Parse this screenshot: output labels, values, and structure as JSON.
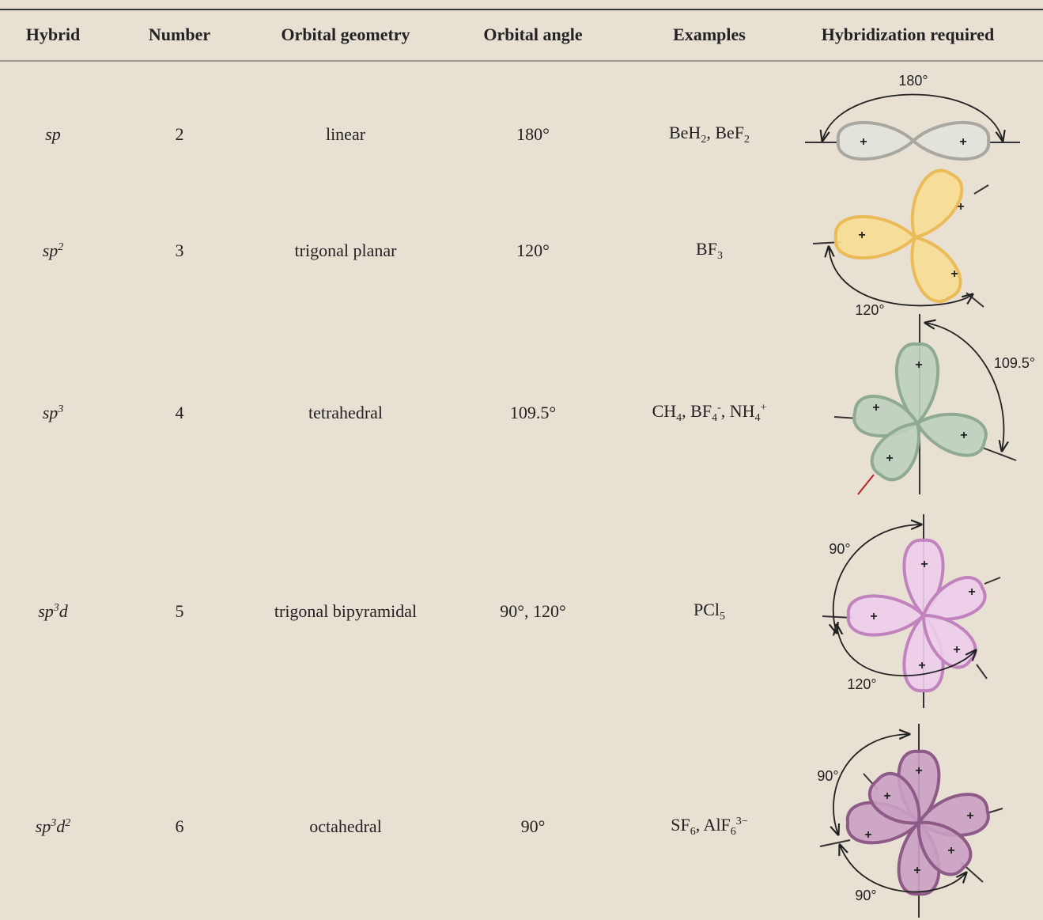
{
  "table": {
    "header": [
      "Hybrid",
      "Number",
      "Orbital geometry",
      "Orbital angle",
      "Examples",
      "Hybridization required"
    ],
    "rows": [
      [
        [
          {
            "t": "sp"
          }
        ],
        "2",
        "linear",
        "180°",
        [
          {
            "t": "BeH"
          },
          {
            "t": "2",
            "style": "sub"
          },
          {
            "t": ", BeF"
          },
          {
            "t": "2",
            "style": "sub"
          }
        ]
      ],
      [
        [
          {
            "t": "sp"
          },
          {
            "t": "2",
            "style": "sup"
          }
        ],
        "3",
        "trigonal planar",
        "120°",
        [
          {
            "t": "BF"
          },
          {
            "t": "3",
            "style": "sub"
          }
        ]
      ],
      [
        [
          {
            "t": "sp"
          },
          {
            "t": "3",
            "style": "sup"
          }
        ],
        "4",
        "tetrahedral",
        "109.5°",
        [
          {
            "t": "CH"
          },
          {
            "t": "4",
            "style": "sub"
          },
          {
            "t": ", BF"
          },
          {
            "t": "4",
            "style": "sub"
          },
          {
            "t": "-",
            "style": "sup"
          },
          {
            "t": ", NH"
          },
          {
            "t": "4",
            "style": "sub"
          },
          {
            "t": "+",
            "style": "sup"
          }
        ]
      ],
      [
        [
          {
            "t": "sp"
          },
          {
            "t": "3",
            "style": "sup"
          },
          {
            "t": "d"
          }
        ],
        "5",
        "trigonal bipyramidal",
        "90°, 120°",
        [
          {
            "t": "PCl"
          },
          {
            "t": "5",
            "style": "sub"
          }
        ]
      ],
      [
        [
          {
            "t": "sp"
          },
          {
            "t": "3",
            "style": "sup"
          },
          {
            "t": "d"
          },
          {
            "t": "2",
            "style": "sup"
          }
        ],
        "6",
        "octahedral",
        "90°",
        [
          {
            "t": "SF"
          },
          {
            "t": "6",
            "style": "sub"
          },
          {
            "t": ", AlF"
          },
          {
            "t": "6",
            "style": "sub"
          },
          {
            "t": "3−",
            "style": "sup"
          }
        ]
      ]
    ]
  },
  "diagrams": [
    {
      "angle_labels": [
        "180°"
      ]
    },
    {
      "angle_labels": [
        "120°"
      ]
    },
    {
      "angle_labels": [
        "109.5°"
      ]
    },
    {
      "angle_labels": [
        "90°",
        "120°"
      ]
    },
    {
      "angle_labels": [
        "90°",
        "90°"
      ]
    }
  ],
  "plus_sign": "+"
}
